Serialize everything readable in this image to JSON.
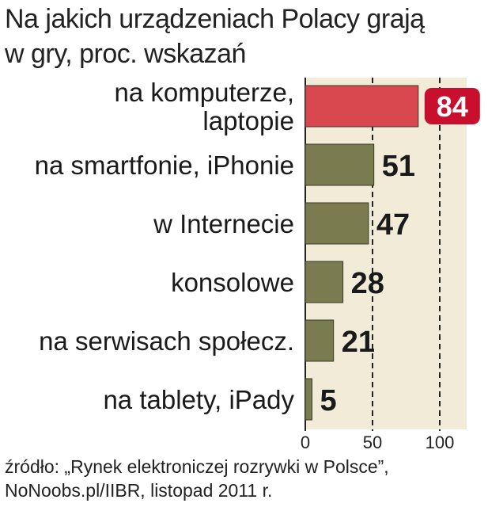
{
  "title_lines": [
    "Na jakich urządzeniach Polacy grają",
    "w gry, proc. wskazań"
  ],
  "source_lines": [
    "źródło: „Rynek elektroniczej rozrywki w Polsce”,",
    "NoNoobs.pl/IIBR, listopad 2011 r."
  ],
  "colors": {
    "highlight_bar": "#d9474f",
    "bar": "#7a7b4f",
    "plot_background": "#f1ebd7",
    "highlight_badge": "#c8102e"
  },
  "chart_data": {
    "type": "bar",
    "orientation": "horizontal",
    "categories": [
      [
        "na komputerze,",
        "laptopie"
      ],
      [
        "na smartfonie, iPhonie"
      ],
      [
        "w Internecie"
      ],
      [
        "konsolowe"
      ],
      [
        "na serwisach społecz."
      ],
      [
        "na tablety, iPady"
      ]
    ],
    "values": [
      84,
      51,
      47,
      28,
      21,
      5
    ],
    "value_labels": [
      "84",
      "51",
      "47",
      "28",
      "21",
      "5"
    ],
    "highlight_index": 0,
    "xlim": [
      0,
      115
    ],
    "xticks": [
      0,
      50,
      100
    ],
    "xtick_labels": [
      "0",
      "50",
      "100"
    ],
    "dashed_gridlines": [
      50,
      100
    ]
  }
}
